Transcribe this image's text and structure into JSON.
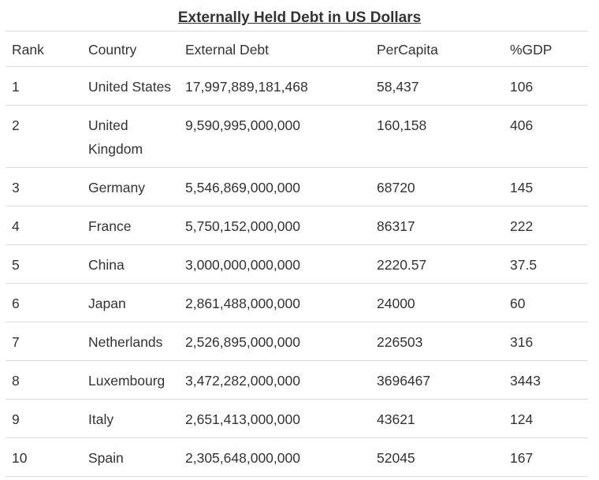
{
  "title": "Externally Held Debt in US Dollars",
  "table": {
    "headers": [
      "Rank",
      "Country",
      "External Debt",
      "PerCapita",
      "%GDP"
    ],
    "rows": [
      [
        "1",
        "United States",
        "17,997,889,181,468",
        "58,437",
        "106"
      ],
      [
        "2",
        "United Kingdom",
        "9,590,995,000,000",
        "160,158",
        "406"
      ],
      [
        "3",
        "Germany",
        "5,546,869,000,000",
        "68720",
        "145"
      ],
      [
        "4",
        "France",
        "5,750,152,000,000",
        "86317",
        "222"
      ],
      [
        "5",
        "China",
        "3,000,000,000,000",
        "2220.57",
        "37.5"
      ],
      [
        "6",
        "Japan",
        "2,861,488,000,000",
        "24000",
        "60"
      ],
      [
        "7",
        "Netherlands",
        "2,526,895,000,000",
        "226503",
        "316"
      ],
      [
        "8",
        "Luxembourg",
        "3,472,282,000,000",
        "3696467",
        "3443"
      ],
      [
        "9",
        "Italy",
        "2,651,413,000,000",
        "43621",
        "124"
      ],
      [
        "10",
        "Spain",
        "2,305,648,000,000",
        "52045",
        "167"
      ]
    ]
  },
  "colors": {
    "text": "#333333",
    "rule": "#dddddd",
    "background": "#ffffff"
  }
}
